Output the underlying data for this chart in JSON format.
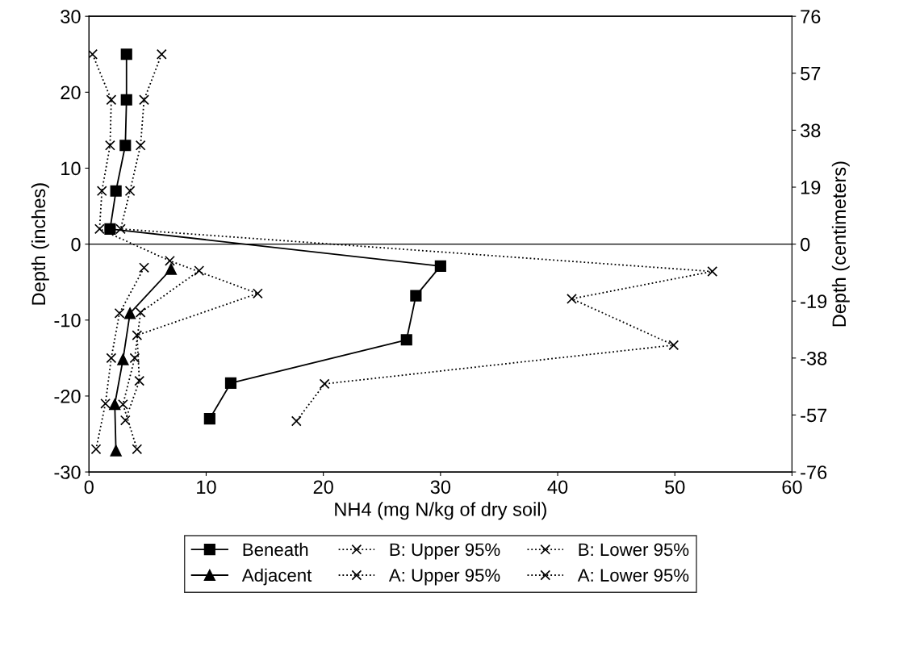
{
  "chart_data": {
    "type": "line",
    "xlabel": "NH4 (mg N/kg of dry soil)",
    "ylabel": "Depth (inches)",
    "y2label": "Depth (centimeters)",
    "xlim": [
      0,
      60
    ],
    "xticks": [
      0,
      10,
      20,
      30,
      40,
      50,
      60
    ],
    "ylim": [
      -30,
      30
    ],
    "yticks": [
      -30,
      -20,
      -10,
      0,
      10,
      20,
      30
    ],
    "y2lim": [
      -76,
      76
    ],
    "y2ticks": [
      -76,
      -57,
      -38,
      -19,
      0,
      19,
      38,
      57,
      76
    ],
    "ref_lines": [
      {
        "axis": "y",
        "value": 0,
        "color": "#000000",
        "line_style": "solid"
      }
    ],
    "grid": false,
    "legend": "bottom",
    "series": [
      {
        "name": "Beneath",
        "color": "#000000",
        "marker": "square",
        "line_style": "solid",
        "x": [
          3.2,
          3.2,
          3.1,
          2.3,
          1.8,
          30.0,
          27.9,
          27.1,
          12.1,
          10.3
        ],
        "values": [
          25,
          19,
          13,
          7,
          2,
          -2.9,
          -6.8,
          -12.6,
          -18.3,
          -23
        ]
      },
      {
        "name": "Adjacent",
        "color": "#000000",
        "marker": "triangle",
        "line_style": "solid",
        "x": [
          7.0,
          3.5,
          2.9,
          2.2,
          2.3
        ],
        "values": [
          -3.3,
          -9.1,
          -15.2,
          -21.1,
          -27.2
        ]
      },
      {
        "name": "B: Upper 95%",
        "color": "#000000",
        "marker": "cross",
        "line_style": "dotted",
        "x": [
          6.2,
          4.7,
          4.4,
          3.5,
          2.7,
          53.2,
          41.2,
          49.9,
          20.1,
          17.7
        ],
        "values": [
          25,
          19,
          13,
          7,
          2,
          -3.6,
          -7.2,
          -13.3,
          -18.4,
          -23.3
        ]
      },
      {
        "name": "A: Upper 95%",
        "color": "#000000",
        "marker": "cross",
        "line_style": "dotted",
        "x": [
          9.4,
          4.4,
          3.9,
          2.9,
          4.1
        ],
        "values": [
          -3.5,
          -9.0,
          -15.0,
          -21.1,
          -27.0
        ]
      },
      {
        "name": "B: Lower 95%",
        "color": "#000000",
        "marker": "cross",
        "line_style": "dotted",
        "x": [
          0.3,
          1.9,
          1.8,
          1.1,
          0.9,
          6.9,
          14.4,
          4.1,
          4.3,
          3.1
        ],
        "values": [
          25,
          19,
          13,
          7,
          2,
          -2.2,
          -6.5,
          -12.0,
          -18.0,
          -23.2
        ]
      },
      {
        "name": "A: Lower 95%",
        "color": "#000000",
        "marker": "cross",
        "line_style": "dotted",
        "x": [
          4.7,
          2.6,
          1.9,
          1.4,
          0.6
        ],
        "values": [
          -3.1,
          -9.1,
          -15.0,
          -21.0,
          -27.0
        ]
      }
    ]
  }
}
